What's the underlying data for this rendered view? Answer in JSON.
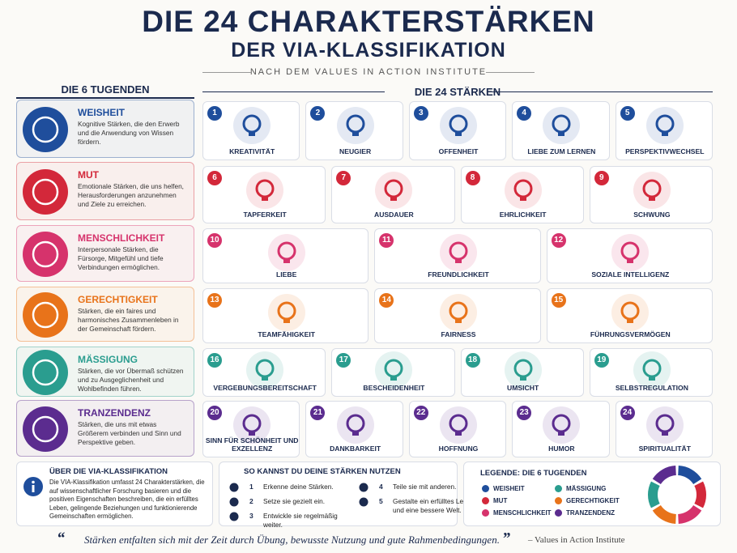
{
  "header": {
    "title": "DIE 24 CHARAKTERSTÄRKEN",
    "subtitle": "DER VIA-KLASSIFIKATION",
    "tagline": "NACH DEM VALUES IN ACTION INSTITUTE"
  },
  "virtues_heading": "DIE 6 TUGENDEN",
  "strengths_heading": "DIE 24 STÄRKEN",
  "virtues": [
    {
      "name": "WEISHEIT",
      "color": "#1f4e9c",
      "description": "Kognitive Stärken, die den Erwerb und die Anwendung von Wissen fördern."
    },
    {
      "name": "MUT",
      "color": "#d3283a",
      "description": "Emotionale Stärken, die uns helfen, Herausforderungen anzunehmen und Ziele zu erreichen."
    },
    {
      "name": "MENSCHLICHKEIT",
      "color": "#d6336c",
      "description": "Interpersonale Stärken, die Fürsorge, Mitgefühl und tiefe Verbindungen ermöglichen."
    },
    {
      "name": "GERECHTIGKEIT",
      "color": "#e8731a",
      "description": "Stärken, die ein faires und harmonisches Zusammenleben in der Gemeinschaft fördern."
    },
    {
      "name": "MÄSSIGUNG",
      "color": "#2a9d8f",
      "description": "Stärken, die vor Übermaß schützen und zu Ausgeglichenheit und Wohlbefinden führen."
    },
    {
      "name": "TRANZENDENZ",
      "color": "#5b2c8f",
      "description": "Stärken, die uns mit etwas Größerem verbinden und Sinn und Perspektive geben."
    }
  ],
  "strength_rows": [
    [
      {
        "number": 1,
        "name": "KREATIVITÄT"
      },
      {
        "number": 2,
        "name": "NEUGIER"
      },
      {
        "number": 3,
        "name": "OFFENHEIT"
      },
      {
        "number": 4,
        "name": "LIEBE ZUM LERNEN"
      },
      {
        "number": 5,
        "name": "PERSPEKTIVWECHSEL"
      }
    ],
    [
      {
        "number": 6,
        "name": "TAPFERKEIT"
      },
      {
        "number": 7,
        "name": "AUSDAUER"
      },
      {
        "number": 8,
        "name": "EHRLICHKEIT"
      },
      {
        "number": 9,
        "name": "SCHWUNG"
      }
    ],
    [
      {
        "number": 10,
        "name": "LIEBE"
      },
      {
        "number": 11,
        "name": "FREUNDLICHKEIT"
      },
      {
        "number": 12,
        "name": "SOZIALE INTELLIGENZ"
      }
    ],
    [
      {
        "number": 13,
        "name": "TEAMFÄHIGKEIT"
      },
      {
        "number": 14,
        "name": "FAIRNESS"
      },
      {
        "number": 15,
        "name": "FÜHRUNGSVERMÖGEN"
      }
    ],
    [
      {
        "number": 16,
        "name": "VERGEBUNGSBEREITSCHAFT"
      },
      {
        "number": 17,
        "name": "BESCHEIDENHEIT"
      },
      {
        "number": 18,
        "name": "UMSICHT"
      },
      {
        "number": 19,
        "name": "SELBSTREGULATION"
      }
    ],
    [
      {
        "number": 20,
        "name": "SINN FÜR SCHÖNHEIT UND EXZELLENZ"
      },
      {
        "number": 21,
        "name": "DANKBARKEIT"
      },
      {
        "number": 22,
        "name": "HOFFNUNG"
      },
      {
        "number": 23,
        "name": "HUMOR"
      },
      {
        "number": 24,
        "name": "SPIRITUALITÄT"
      }
    ]
  ],
  "about": {
    "title": "ÜBER DIE VIA-KLASSIFIKATION",
    "text": "Die VIA-Klassifikation umfasst 24 Charakterstärken, die auf wissenschaftlicher Forschung basieren und die positiven Eigenschaften beschreiben, die ein erfülltes Leben, gelingende Beziehungen und funktionierende Gemeinschaften ermöglichen."
  },
  "usage": {
    "title": "SO KANNST DU DEINE STÄRKEN NUTZEN",
    "steps": [
      {
        "number": 1,
        "text": "Erkenne deine Stärken."
      },
      {
        "number": 2,
        "text": "Setze sie gezielt ein."
      },
      {
        "number": 3,
        "text": "Entwickle sie regelmäßig weiter."
      },
      {
        "number": 4,
        "text": "Teile sie mit anderen."
      },
      {
        "number": 5,
        "text": "Gestalte ein erfülltes Leben und eine bessere Welt."
      }
    ]
  },
  "legend": {
    "title": "LEGENDE: DIE 6 TUGENDEN"
  },
  "footer": {
    "open_quote": "“",
    "quote": "Stärken entfalten sich mit der Zeit durch Übung, bewusste Nutzung und gute Rahmenbedingungen.",
    "close_quote": "”",
    "author": "– Values in Action Institute"
  }
}
